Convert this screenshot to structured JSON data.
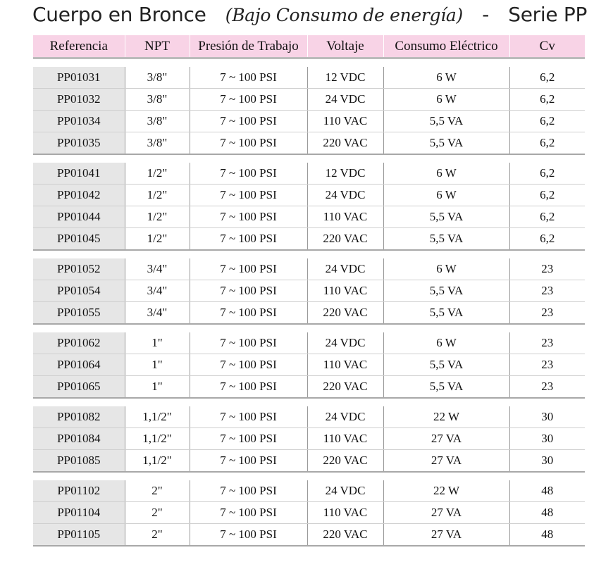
{
  "title": {
    "main": "Cuerpo en Bronce",
    "sub": "(Bajo Consumo de energía)",
    "dash": "-",
    "series": "Serie PP"
  },
  "headers": [
    "Referencia",
    "NPT",
    "Presión de Trabajo",
    "Voltaje",
    "Consumo Eléctrico",
    "Cv"
  ],
  "groups": [
    [
      [
        "PP01031",
        "3/8\"",
        "7 ~ 100 PSI",
        "12 VDC",
        "6 W",
        "6,2"
      ],
      [
        "PP01032",
        "3/8\"",
        "7 ~ 100 PSI",
        "24 VDC",
        "6 W",
        "6,2"
      ],
      [
        "PP01034",
        "3/8\"",
        "7 ~ 100 PSI",
        "110 VAC",
        "5,5 VA",
        "6,2"
      ],
      [
        "PP01035",
        "3/8\"",
        "7 ~ 100 PSI",
        "220 VAC",
        "5,5 VA",
        "6,2"
      ]
    ],
    [
      [
        "PP01041",
        "1/2\"",
        "7 ~ 100 PSI",
        "12 VDC",
        "6 W",
        "6,2"
      ],
      [
        "PP01042",
        "1/2\"",
        "7 ~ 100 PSI",
        "24 VDC",
        "6 W",
        "6,2"
      ],
      [
        "PP01044",
        "1/2\"",
        "7 ~ 100 PSI",
        "110 VAC",
        "5,5 VA",
        "6,2"
      ],
      [
        "PP01045",
        "1/2\"",
        "7 ~ 100 PSI",
        "220 VAC",
        "5,5 VA",
        "6,2"
      ]
    ],
    [
      [
        "PP01052",
        "3/4\"",
        "7 ~ 100 PSI",
        "24 VDC",
        "6 W",
        "23"
      ],
      [
        "PP01054",
        "3/4\"",
        "7 ~ 100 PSI",
        "110 VAC",
        "5,5 VA",
        "23"
      ],
      [
        "PP01055",
        "3/4\"",
        "7 ~ 100 PSI",
        "220 VAC",
        "5,5 VA",
        "23"
      ]
    ],
    [
      [
        "PP01062",
        "1\"",
        "7 ~ 100 PSI",
        "24 VDC",
        "6 W",
        "23"
      ],
      [
        "PP01064",
        "1\"",
        "7 ~ 100 PSI",
        "110 VAC",
        "5,5 VA",
        "23"
      ],
      [
        "PP01065",
        "1\"",
        "7 ~ 100 PSI",
        "220 VAC",
        "5,5 VA",
        "23"
      ]
    ],
    [
      [
        "PP01082",
        "1,1/2\"",
        "7 ~ 100 PSI",
        "24 VDC",
        "22 W",
        "30"
      ],
      [
        "PP01084",
        "1,1/2\"",
        "7 ~ 100 PSI",
        "110 VAC",
        "27 VA",
        "30"
      ],
      [
        "PP01085",
        "1,1/2\"",
        "7 ~ 100 PSI",
        "220 VAC",
        "27 VA",
        "30"
      ]
    ],
    [
      [
        "PP01102",
        "2\"",
        "7 ~ 100 PSI",
        "24 VDC",
        "22 W",
        "48"
      ],
      [
        "PP01104",
        "2\"",
        "7 ~ 100 PSI",
        "110 VAC",
        "27 VA",
        "48"
      ],
      [
        "PP01105",
        "2\"",
        "7 ~ 100 PSI",
        "220 VAC",
        "27 VA",
        "48"
      ]
    ]
  ],
  "colors": {
    "header_bg": "#f8d3e6",
    "ref_col_bg": "#e6e6e6"
  }
}
